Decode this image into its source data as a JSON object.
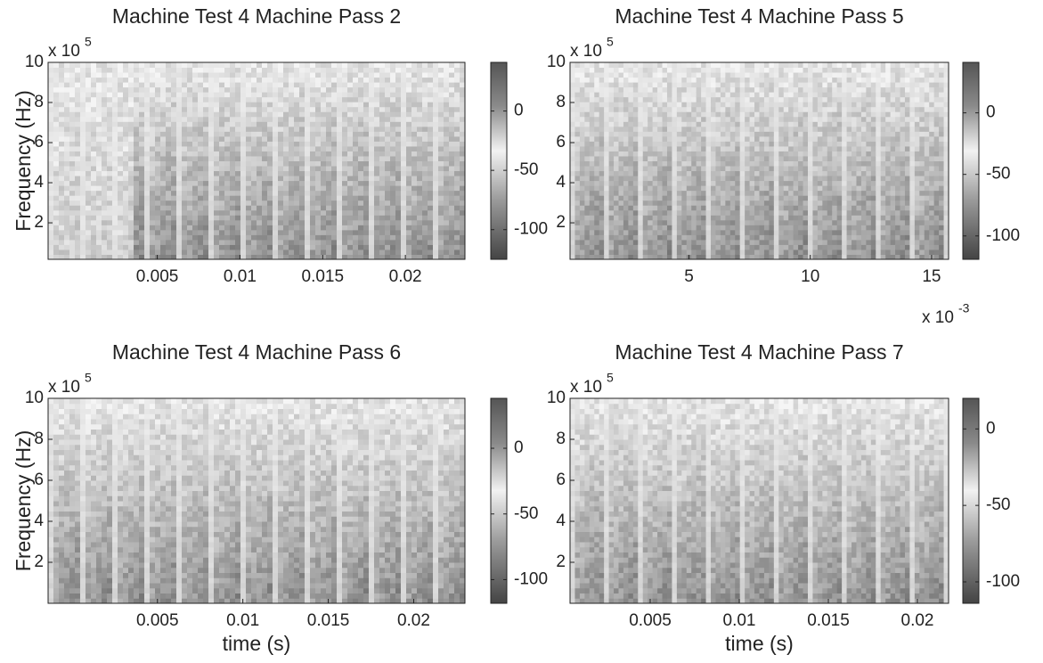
{
  "chart_data": [
    {
      "type": "spectrogram",
      "title": "Machine Test 4 Machine Pass 2",
      "ylabel": "Frequency (Hz)",
      "y_scale_label": "x 10",
      "y_scale_exponent": "5",
      "xlim": [
        -0.0016,
        0.0236
      ],
      "xticks": [
        0.005,
        0.01,
        0.015,
        0.02
      ],
      "ylim": [
        0.18,
        10
      ],
      "yticks": [
        2,
        4,
        6,
        8,
        10
      ],
      "colorbar": {
        "lim": [
          -125,
          41
        ],
        "ticks": [
          -100,
          -50,
          0
        ]
      }
    },
    {
      "type": "spectrogram",
      "title": "Machine Test 4 Machine Pass 5",
      "y_scale_label": "x 10",
      "y_scale_exponent": "5",
      "x_scale_label": "x 10",
      "x_scale_exponent": "-3",
      "xlim": [
        0.1,
        15.7
      ],
      "xticks": [
        5,
        10,
        15
      ],
      "ylim": [
        0.18,
        10
      ],
      "yticks": [
        2,
        4,
        6,
        8,
        10
      ],
      "colorbar": {
        "lim": [
          -119,
          41
        ],
        "ticks": [
          -100,
          -50,
          0
        ]
      }
    },
    {
      "type": "spectrogram",
      "title": "Machine Test 4 Machine Pass 6",
      "ylabel": "Frequency (Hz)",
      "xlabel": "time (s)",
      "y_scale_label": "x 10",
      "y_scale_exponent": "5",
      "xlim": [
        -0.0014,
        0.023
      ],
      "xticks": [
        0.005,
        0.01,
        0.015,
        0.02
      ],
      "ylim": [
        0,
        10
      ],
      "yticks": [
        2,
        4,
        6,
        8,
        10
      ],
      "colorbar": {
        "lim": [
          -118,
          38
        ],
        "ticks": [
          -100,
          -50,
          0
        ]
      }
    },
    {
      "type": "spectrogram",
      "title": "Machine Test 4 Machine Pass 7",
      "xlabel": "time (s)",
      "y_scale_label": "x 10",
      "y_scale_exponent": "5",
      "xlim": [
        0.0005,
        0.02175
      ],
      "xticks": [
        0.005,
        0.01,
        0.015,
        0.02
      ],
      "ylim": [
        0,
        10
      ],
      "yticks": [
        2,
        4,
        6,
        8,
        10
      ],
      "colorbar": {
        "lim": [
          -114,
          20
        ],
        "ticks": [
          -100,
          -50,
          0
        ]
      }
    }
  ]
}
